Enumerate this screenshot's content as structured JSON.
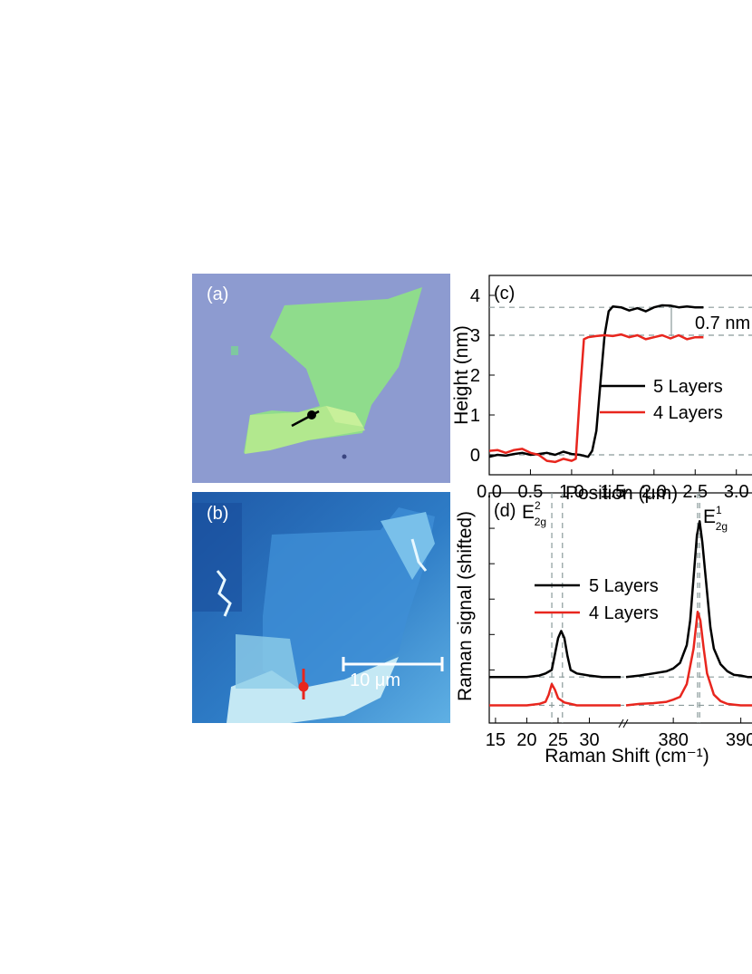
{
  "panel_a": {
    "label": "(a)"
  },
  "panel_b": {
    "label": "(b)",
    "scale_bar": "10 μm"
  },
  "colors": {
    "five_layers": "#000000",
    "four_layers": "#e8261e",
    "guide": "#8a9a9a"
  },
  "chart_data": [
    {
      "type": "line",
      "panel": "(c)",
      "xlabel": "Position (μm)",
      "ylabel": "Height (nm)",
      "xlim": [
        0.0,
        3.3
      ],
      "ylim": [
        -0.5,
        4.5
      ],
      "xticks": [
        "0.0",
        "0.5",
        "1.0",
        "1.5",
        "2.0",
        "2.5",
        "3.0"
      ],
      "yticks": [
        "0",
        "1",
        "2",
        "3",
        "4"
      ],
      "annotation": "0.7 nm",
      "guides_y": [
        3.7,
        3.0,
        0.0
      ],
      "series": [
        {
          "name": "5 Layers",
          "x": [
            0.0,
            0.1,
            0.2,
            0.3,
            0.4,
            0.5,
            0.6,
            0.7,
            0.8,
            0.9,
            1.0,
            1.1,
            1.2,
            1.25,
            1.3,
            1.35,
            1.4,
            1.45,
            1.5,
            1.6,
            1.7,
            1.8,
            1.9,
            2.0,
            2.1,
            2.2,
            2.3,
            2.4,
            2.5,
            2.6
          ],
          "y": [
            -0.05,
            0.0,
            -0.02,
            0.02,
            0.05,
            0.0,
            0.02,
            0.05,
            0.0,
            0.08,
            0.02,
            0.0,
            -0.05,
            0.1,
            0.6,
            1.8,
            3.0,
            3.6,
            3.72,
            3.7,
            3.62,
            3.68,
            3.6,
            3.7,
            3.75,
            3.74,
            3.7,
            3.72,
            3.7,
            3.7
          ]
        },
        {
          "name": "4 Layers",
          "x": [
            0.0,
            0.1,
            0.2,
            0.3,
            0.4,
            0.5,
            0.6,
            0.7,
            0.8,
            0.9,
            1.0,
            1.05,
            1.1,
            1.15,
            1.2,
            1.3,
            1.4,
            1.5,
            1.6,
            1.7,
            1.8,
            1.9,
            2.0,
            2.1,
            2.2,
            2.3,
            2.4,
            2.5,
            2.6
          ],
          "y": [
            0.1,
            0.12,
            0.05,
            0.12,
            0.15,
            0.05,
            0.0,
            -0.15,
            -0.18,
            -0.1,
            -0.15,
            -0.1,
            1.5,
            2.9,
            2.95,
            2.98,
            3.0,
            2.98,
            3.02,
            2.95,
            3.0,
            2.9,
            2.95,
            3.0,
            2.92,
            3.0,
            2.9,
            2.95,
            2.95
          ]
        }
      ]
    },
    {
      "type": "line",
      "panel": "(d)",
      "xlabel": "Raman Shift (cm⁻¹)",
      "ylabel": "Raman signal (shifted)",
      "xticks_left": [
        "15",
        "20",
        "25",
        "30"
      ],
      "xticks_right": [
        "380",
        "390"
      ],
      "xlim_left": [
        14,
        35
      ],
      "xlim_right": [
        373,
        393
      ],
      "ylim": [
        -0.25,
        3.0
      ],
      "peak_labels": [
        "E",
        "E"
      ],
      "peak_sub": [
        "2g",
        "2g"
      ],
      "peak_sup": [
        "2",
        "1"
      ],
      "guides_x_left": [
        24.0,
        25.7
      ],
      "guides_x_right": [
        383.6,
        383.9
      ],
      "series": [
        {
          "name": "5 Layers",
          "offset": 0.4,
          "left_x": [
            14,
            16,
            18,
            20,
            22,
            23,
            24,
            25,
            25.5,
            26,
            26.5,
            27,
            28,
            30,
            32,
            35
          ],
          "left_y": [
            0.0,
            0.0,
            0.0,
            0.0,
            0.02,
            0.05,
            0.1,
            0.55,
            0.65,
            0.55,
            0.3,
            0.1,
            0.05,
            0.02,
            0.0,
            0.0
          ],
          "right_x": [
            373,
            375,
            377,
            379,
            380,
            381,
            382,
            382.5,
            383,
            383.5,
            383.9,
            384.3,
            385,
            385.5,
            386,
            387,
            388,
            389,
            390,
            391,
            393
          ],
          "right_y": [
            0.0,
            0.02,
            0.05,
            0.08,
            0.12,
            0.2,
            0.45,
            0.8,
            1.4,
            2.0,
            2.2,
            1.9,
            1.2,
            0.7,
            0.4,
            0.18,
            0.08,
            0.03,
            0.02,
            0.0,
            0.0
          ]
        },
        {
          "name": "4 Layers",
          "offset": 0.0,
          "left_x": [
            14,
            16,
            18,
            20,
            22,
            23,
            23.5,
            24,
            24.5,
            25,
            26,
            27,
            28,
            30,
            32,
            35
          ],
          "left_y": [
            0.0,
            0.0,
            0.0,
            0.0,
            0.02,
            0.05,
            0.15,
            0.3,
            0.22,
            0.1,
            0.04,
            0.02,
            0.0,
            0.0,
            0.0,
            0.0
          ],
          "right_x": [
            373,
            375,
            377,
            379,
            380,
            381,
            382,
            383,
            383.6,
            384,
            384.5,
            385,
            386,
            387,
            388,
            389,
            390,
            391,
            393
          ],
          "right_y": [
            0.0,
            0.02,
            0.03,
            0.05,
            0.08,
            0.12,
            0.3,
            0.8,
            1.32,
            1.2,
            0.8,
            0.45,
            0.15,
            0.06,
            0.02,
            0.01,
            0.0,
            0.0,
            0.0
          ]
        }
      ]
    }
  ]
}
